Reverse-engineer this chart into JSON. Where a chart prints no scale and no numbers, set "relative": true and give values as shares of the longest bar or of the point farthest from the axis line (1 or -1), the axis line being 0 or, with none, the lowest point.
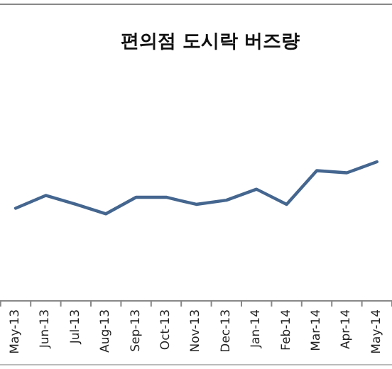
{
  "chart_data": {
    "type": "line",
    "title": "편의점 도시락 버즈량",
    "relative": true,
    "categories": [
      "May-13",
      "Jun-13",
      "Jul-13",
      "Aug-13",
      "Sep-13",
      "Oct-13",
      "Nov-13",
      "Dec-13",
      "Jan-14",
      "Feb-14",
      "Mar-14",
      "Apr-14",
      "May-14"
    ],
    "series": [
      {
        "color": "#44668f",
        "values": [
          0.666,
          0.758,
          0.694,
          0.626,
          0.745,
          0.745,
          0.694,
          0.724,
          0.803,
          0.694,
          0.936,
          0.921,
          1
        ]
      }
    ],
    "grid": false,
    "marker": "none",
    "line_style": "solid"
  }
}
